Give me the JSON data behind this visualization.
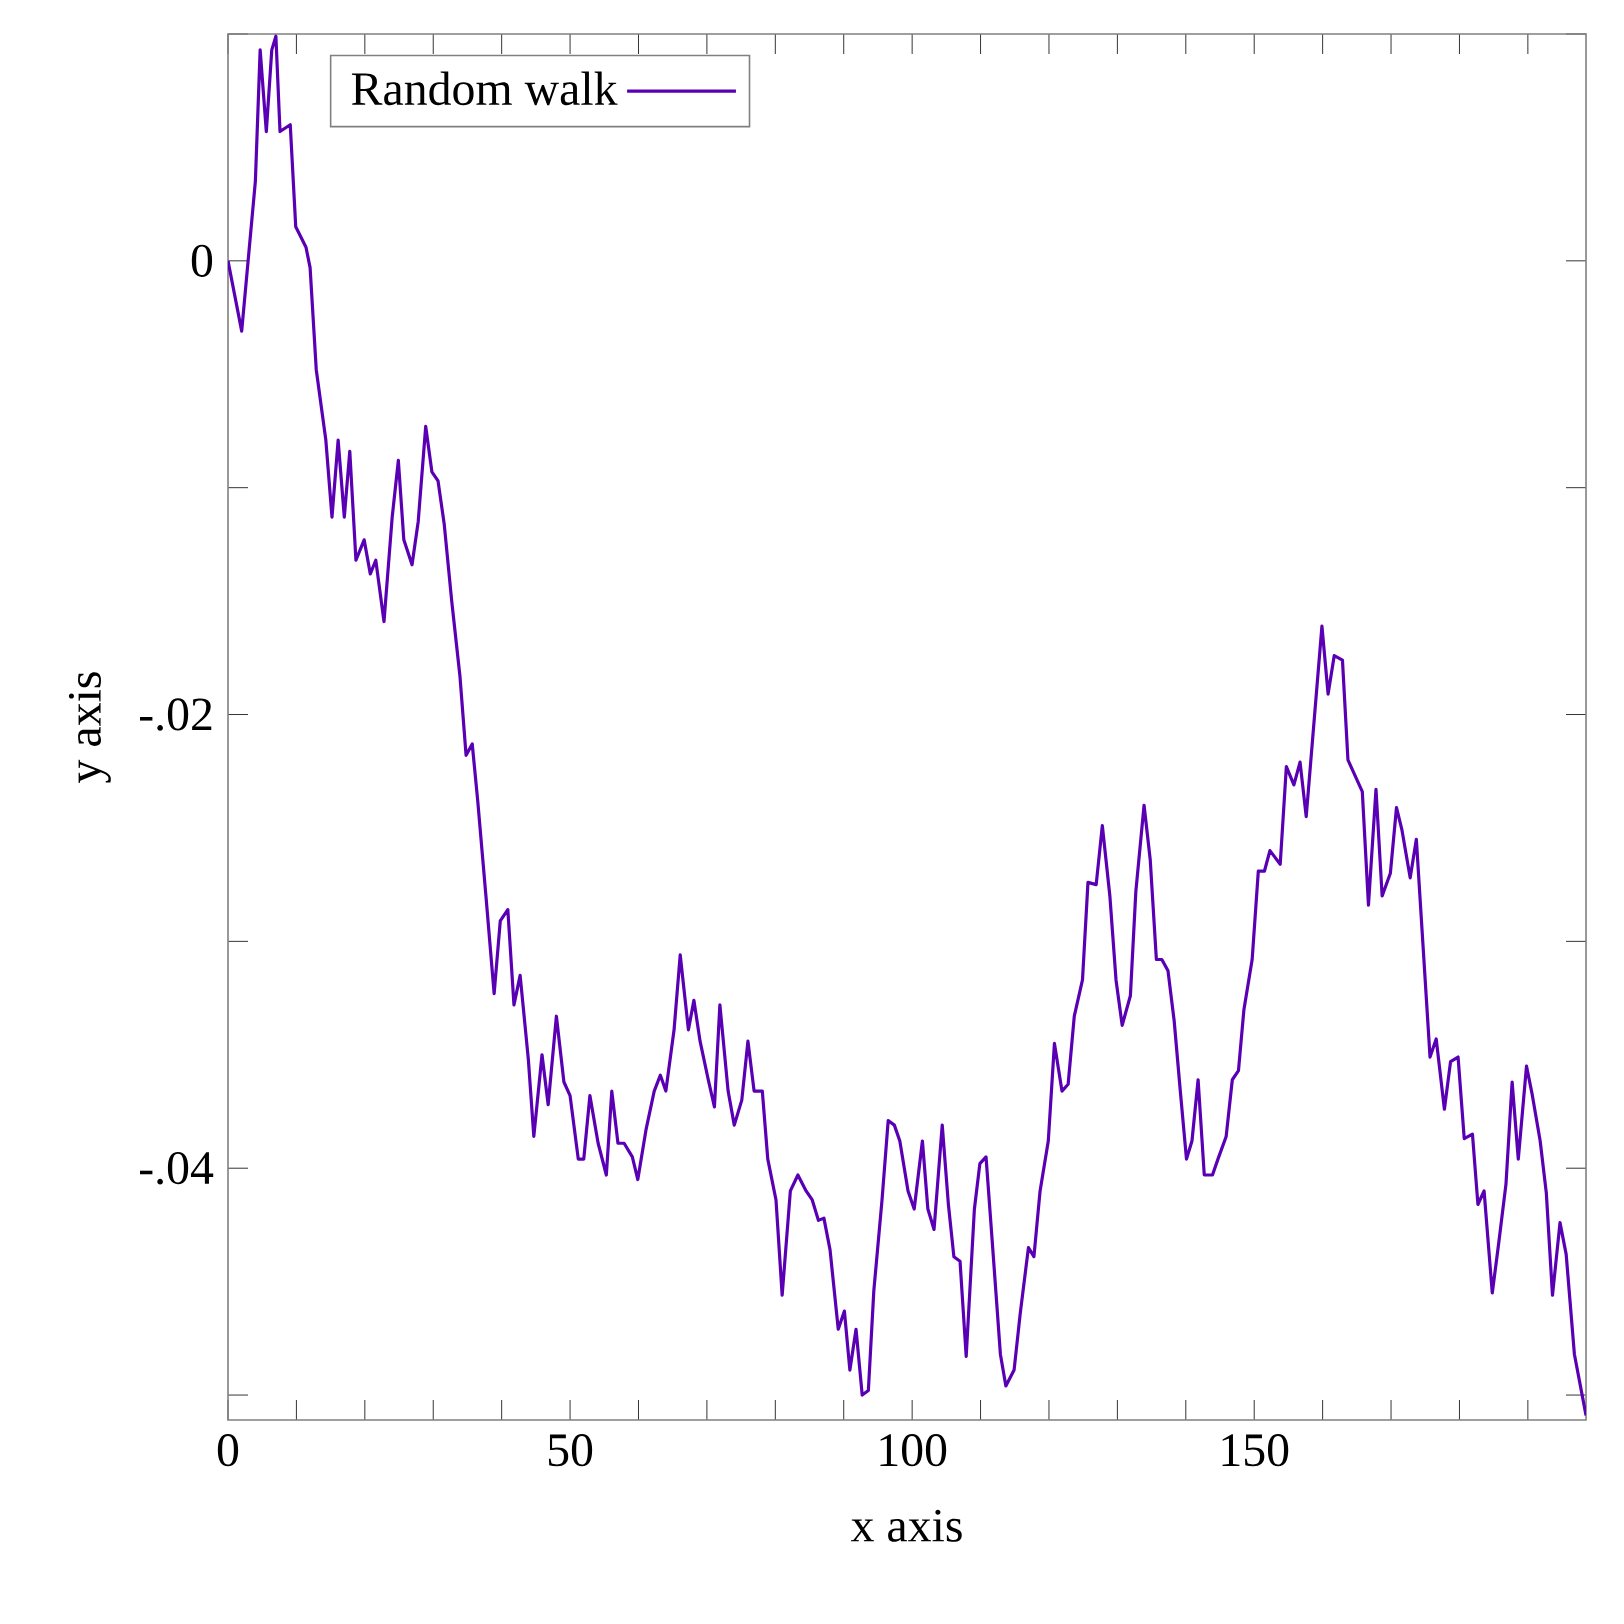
{
  "chart_data": {
    "type": "line",
    "xlabel": "x axis",
    "ylabel": "y axis",
    "legend": "top left",
    "xlim": [
      0,
      198.5
    ],
    "ylim": [
      -0.0511,
      0.01
    ],
    "xticks": [
      0,
      {
        "value": 10,
        "label": null
      },
      {
        "value": 20,
        "label": null
      },
      {
        "value": 30,
        "label": null
      },
      {
        "value": 40,
        "label": null
      },
      50,
      {
        "value": 60,
        "label": null
      },
      {
        "value": 70,
        "label": null
      },
      {
        "value": 80,
        "label": null
      },
      {
        "value": 90,
        "label": null
      },
      100,
      {
        "value": 110,
        "label": null
      },
      {
        "value": 120,
        "label": null
      },
      {
        "value": 130,
        "label": null
      },
      {
        "value": 140,
        "label": null
      },
      150,
      {
        "value": 160,
        "label": null
      },
      {
        "value": 170,
        "label": null
      },
      {
        "value": 180,
        "label": null
      },
      {
        "value": 190,
        "label": null
      }
    ],
    "yticks": [
      {
        "value": -0.05,
        "label": null
      },
      {
        "value": -0.04,
        "label": "-.04"
      },
      {
        "value": -0.03,
        "label": null
      },
      {
        "value": -0.02,
        "label": "-.02"
      },
      {
        "value": -0.01,
        "label": null
      },
      0,
      {
        "value": 0.01,
        "label": null
      }
    ],
    "series": [
      {
        "name": "Random walk",
        "color": "#5a00b4",
        "x": [
          0,
          2,
          4,
          4.7,
          5.6,
          6.4,
          7.0,
          7.6,
          9.1,
          9.9,
          11.4,
          12.0,
          12.9,
          14.3,
          15.2,
          16.1,
          17.0,
          17.8,
          18.7,
          19.9,
          20.8,
          21.6,
          22.8,
          24.0,
          24.9,
          25.7,
          26.9,
          27.8,
          28.9,
          29.8,
          30.7,
          31.6,
          32.7,
          33.9,
          34.8,
          35.7,
          36.5,
          37.7,
          38.9,
          39.8,
          40.9,
          41.8,
          42.7,
          43.9,
          44.7,
          45.9,
          46.8,
          48.0,
          49.1,
          50.0,
          51.2,
          52.0,
          52.9,
          54.1,
          55.3,
          56.1,
          57.0,
          57.9,
          59.1,
          59.9,
          61.1,
          62.3,
          63.2,
          64.0,
          65.2,
          66.1,
          67.3,
          68.1,
          69.0,
          70.2,
          71.1,
          71.9,
          73.1,
          74.0,
          75.1,
          76.0,
          76.9,
          78.1,
          78.9,
          80.1,
          81.0,
          82.2,
          83.3,
          84.5,
          85.4,
          86.3,
          87.1,
          88.0,
          89.2,
          90.1,
          90.9,
          91.8,
          92.7,
          93.6,
          94.4,
          95.6,
          96.5,
          97.4,
          98.2,
          99.4,
          100.3,
          101.5,
          102.3,
          103.2,
          104.4,
          105.3,
          106.1,
          107.0,
          107.9,
          109.1,
          109.9,
          110.8,
          111.7,
          112.9,
          113.7,
          114.9,
          115.8,
          117.0,
          117.8,
          118.7,
          119.9,
          120.8,
          121.9,
          122.8,
          123.7,
          124.9,
          125.7,
          126.9,
          127.8,
          128.9,
          129.8,
          130.7,
          131.9,
          132.7,
          133.9,
          134.8,
          135.7,
          136.5,
          137.4,
          138.3,
          139.2,
          140.1,
          140.9,
          141.8,
          142.7,
          143.9,
          144.7,
          145.9,
          146.8,
          147.7,
          148.5,
          149.7,
          150.6,
          151.5,
          152.3,
          153.8,
          154.7,
          155.8,
          156.7,
          157.6,
          159.9,
          160.8,
          161.7,
          162.9,
          163.7,
          165.8,
          166.7,
          167.8,
          168.7,
          169.9,
          170.8,
          171.6,
          172.8,
          173.7,
          175.7,
          176.6,
          177.8,
          178.7,
          179.8,
          180.7,
          181.9,
          182.7,
          183.6,
          184.8,
          185.7,
          186.8,
          187.7,
          188.6,
          189.8,
          190.6,
          191.8,
          192.7,
          193.6,
          194.7,
          195.6,
          196.8,
          198.5
        ],
        "values": [
          0,
          -0.0031,
          0.0035,
          0.0093,
          0.0057,
          0.0093,
          0.0099,
          0.0057,
          0.006,
          0.0015,
          0.0006,
          -0.0003,
          -0.0048,
          -0.0079,
          -0.0113,
          -0.0079,
          -0.0113,
          -0.0084,
          -0.0132,
          -0.0123,
          -0.0138,
          -0.0132,
          -0.0159,
          -0.0113,
          -0.0088,
          -0.0123,
          -0.0134,
          -0.0115,
          -0.0073,
          -0.0093,
          -0.0097,
          -0.0116,
          -0.015,
          -0.0183,
          -0.0218,
          -0.0213,
          -0.0238,
          -0.028,
          -0.0323,
          -0.0291,
          -0.0286,
          -0.0328,
          -0.0315,
          -0.0352,
          -0.0386,
          -0.035,
          -0.0372,
          -0.0333,
          -0.0362,
          -0.0368,
          -0.0396,
          -0.0396,
          -0.0368,
          -0.0389,
          -0.0403,
          -0.0366,
          -0.0389,
          -0.0389,
          -0.0395,
          -0.0405,
          -0.0383,
          -0.0366,
          -0.0359,
          -0.0366,
          -0.0339,
          -0.0306,
          -0.0339,
          -0.0326,
          -0.0344,
          -0.0361,
          -0.0373,
          -0.0328,
          -0.0366,
          -0.0381,
          -0.037,
          -0.0344,
          -0.0366,
          -0.0366,
          -0.0396,
          -0.0414,
          -0.0456,
          -0.041,
          -0.0403,
          -0.041,
          -0.0414,
          -0.0423,
          -0.0422,
          -0.0436,
          -0.0471,
          -0.0463,
          -0.0489,
          -0.0471,
          -0.05,
          -0.0498,
          -0.0454,
          -0.0414,
          -0.0379,
          -0.0381,
          -0.0388,
          -0.041,
          -0.0418,
          -0.0388,
          -0.0418,
          -0.0427,
          -0.0381,
          -0.0416,
          -0.0439,
          -0.0441,
          -0.0483,
          -0.0418,
          -0.0398,
          -0.0395,
          -0.0432,
          -0.0482,
          -0.0496,
          -0.0489,
          -0.0464,
          -0.0435,
          -0.0439,
          -0.041,
          -0.0388,
          -0.0345,
          -0.0366,
          -0.0363,
          -0.0333,
          -0.0317,
          -0.0274,
          -0.0275,
          -0.0249,
          -0.028,
          -0.0317,
          -0.0337,
          -0.0324,
          -0.0278,
          -0.024,
          -0.0264,
          -0.0308,
          -0.0308,
          -0.0313,
          -0.0335,
          -0.0366,
          -0.0396,
          -0.0388,
          -0.0361,
          -0.0403,
          -0.0403,
          -0.0396,
          -0.0386,
          -0.0361,
          -0.0357,
          -0.033,
          -0.0308,
          -0.0269,
          -0.0269,
          -0.026,
          -0.0266,
          -0.0223,
          -0.0231,
          -0.0221,
          -0.0245,
          -0.0161,
          -0.0191,
          -0.0174,
          -0.0176,
          -0.022,
          -0.0234,
          -0.0284,
          -0.0233,
          -0.028,
          -0.027,
          -0.0241,
          -0.0251,
          -0.0272,
          -0.0255,
          -0.0351,
          -0.0343,
          -0.0374,
          -0.0353,
          -0.0351,
          -0.0387,
          -0.0385,
          -0.0416,
          -0.041,
          -0.0455,
          -0.0434,
          -0.0407,
          -0.0362,
          -0.0396,
          -0.0355,
          -0.0367,
          -0.0388,
          -0.0411,
          -0.0456,
          -0.0424,
          -0.0438,
          -0.0482,
          -0.0509
        ]
      }
    ]
  }
}
